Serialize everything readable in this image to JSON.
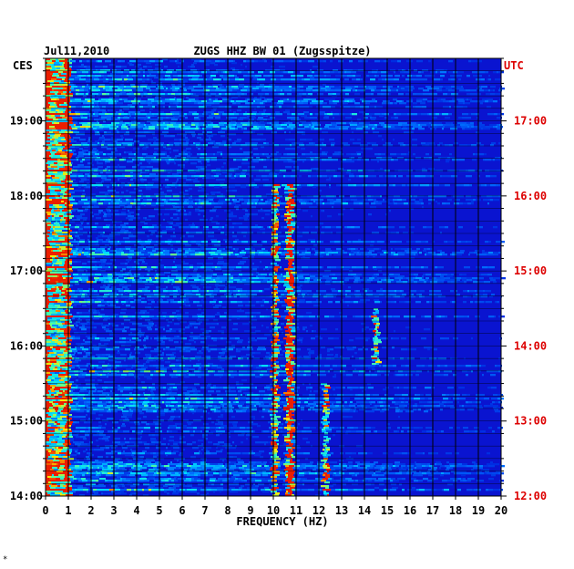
{
  "header": {
    "date": "Jul11,2010",
    "station": "ZUGS HHZ BW 01 (Zugsspitze)",
    "left_timezone": "CES",
    "right_timezone": "UTC"
  },
  "footer": {
    "mark": "*"
  },
  "chart_data": {
    "type": "heatmap",
    "title": "ZUGS HHZ BW 01 (Zugsspitze)",
    "xlabel": "FREQUENCY (HZ)",
    "xlim": [
      0,
      20
    ],
    "x_ticks": [
      "0",
      "1",
      "2",
      "3",
      "4",
      "5",
      "6",
      "7",
      "8",
      "9",
      "10",
      "11",
      "12",
      "13",
      "14",
      "15",
      "16",
      "17",
      "18",
      "19",
      "20"
    ],
    "y_left_label": "CES",
    "y_right_label": "UTC",
    "y_left_ticks": [
      "19:00",
      "18:00",
      "17:00",
      "16:00",
      "15:00",
      "14:00"
    ],
    "y_right_ticks": [
      "17:00",
      "16:00",
      "15:00",
      "14:00",
      "13:00",
      "12:00"
    ],
    "ylim_local": [
      "14:00",
      "19:50"
    ],
    "grid": true,
    "colors": {
      "background": "#0a14d0",
      "left_axis_text": "#000000",
      "right_axis_text": "#dd0000",
      "grid": "#000000"
    },
    "features": [
      {
        "description": "strong persistent lines",
        "frequency_hz": [
          10.1,
          10.7,
          10.8
        ],
        "local_time": [
          "14:00",
          "18:10"
        ]
      },
      {
        "description": "broadband low-frequency energy",
        "frequency_hz": [
          0,
          1
        ],
        "local_time": [
          "14:00",
          "19:50"
        ]
      },
      {
        "description": "intermittent tone",
        "frequency_hz": [
          14.5
        ],
        "local_time": [
          "15:45",
          "16:30"
        ]
      },
      {
        "description": "intermittent band",
        "frequency_hz": [
          12.3
        ],
        "local_time": [
          "14:00",
          "15:30"
        ]
      }
    ]
  }
}
